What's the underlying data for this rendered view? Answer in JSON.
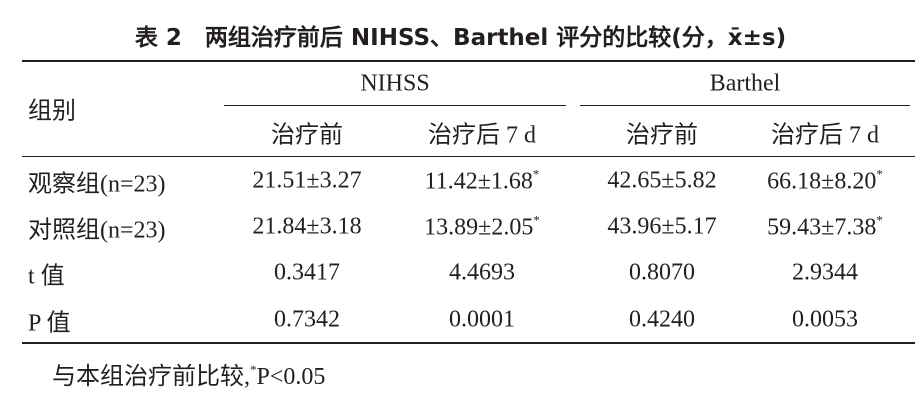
{
  "title": "表 2　两组治疗前后 NIHSS、Barthel 评分的比较(分，x̄±s)",
  "table": {
    "corner": "组别",
    "groups": [
      "NIHSS",
      "Barthel"
    ],
    "subheaders": [
      "治疗前",
      "治疗后 7 d",
      "治疗前",
      "治疗后 7 d"
    ],
    "rows": [
      {
        "label": "观察组(n=23)",
        "cells": [
          {
            "text": "21.51±3.27"
          },
          {
            "text": "11.42±1.68",
            "sup": "*"
          },
          {
            "text": "42.65±5.82"
          },
          {
            "text": "66.18±8.20",
            "sup": "*"
          }
        ]
      },
      {
        "label": "对照组(n=23)",
        "cells": [
          {
            "text": "21.84±3.18"
          },
          {
            "text": "13.89±2.05",
            "sup": "*"
          },
          {
            "text": "43.96±5.17"
          },
          {
            "text": "59.43±7.38",
            "sup": "*"
          }
        ]
      },
      {
        "label": "t 值",
        "cells": [
          {
            "text": "0.3417"
          },
          {
            "text": "4.4693"
          },
          {
            "text": "0.8070"
          },
          {
            "text": "2.9344"
          }
        ]
      },
      {
        "label": "P 值",
        "cells": [
          {
            "text": "0.7342"
          },
          {
            "text": "0.0001"
          },
          {
            "text": "0.4240"
          },
          {
            "text": "0.0053"
          }
        ]
      }
    ]
  },
  "footnote": {
    "text": "与本组治疗前比较,",
    "sup": "*",
    "tail": "P<0.05"
  }
}
